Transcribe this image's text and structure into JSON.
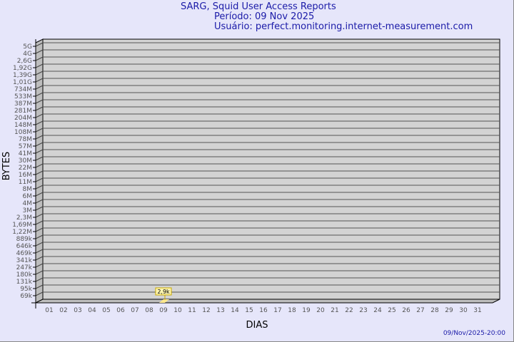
{
  "header": {
    "title": "SARG, Squid User Access Reports",
    "period": "Período: 09 Nov 2025",
    "user": "Usuário: perfect.monitoring.internet-measurement.com"
  },
  "footer": {
    "timestamp": "09/Nov/2025-20:00"
  },
  "colors": {
    "background": "#e6e6fa",
    "plot": "#d3d3d3",
    "bar": "#ffe88c",
    "title": "#1a1aa8"
  },
  "chart_data": {
    "type": "bar",
    "xlabel": "DIAS",
    "ylabel": "BYTES",
    "y_scale": "log",
    "grid": true,
    "y_tick_labels": [
      "5G",
      "4G",
      "2,6G",
      "1,92G",
      "1,39G",
      "1,01G",
      "734M",
      "533M",
      "387M",
      "281M",
      "204M",
      "148M",
      "108M",
      "78M",
      "57M",
      "41M",
      "30M",
      "22M",
      "16M",
      "11M",
      "8M",
      "6M",
      "4M",
      "3M",
      "2,3M",
      "1,69M",
      "1,22M",
      "889k",
      "646k",
      "469k",
      "341k",
      "247k",
      "180k",
      "131k",
      "95k",
      "69k"
    ],
    "categories": [
      "01",
      "02",
      "03",
      "04",
      "05",
      "06",
      "07",
      "08",
      "09",
      "10",
      "11",
      "12",
      "13",
      "14",
      "15",
      "16",
      "17",
      "18",
      "19",
      "20",
      "21",
      "22",
      "23",
      "24",
      "25",
      "26",
      "27",
      "28",
      "29",
      "30",
      "31"
    ],
    "bars": [
      {
        "day": "09",
        "value": 2900,
        "label": "2,9k"
      }
    ]
  }
}
